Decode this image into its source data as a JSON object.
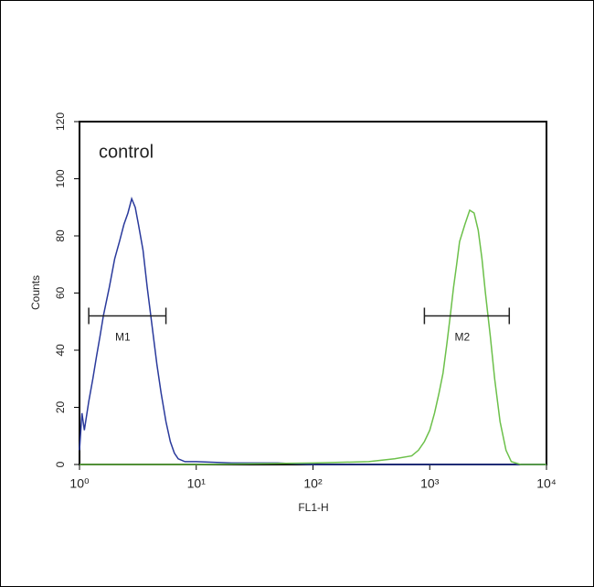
{
  "chart_data": {
    "type": "line",
    "annotation": "control",
    "x_label": "FL1-H",
    "y_label": "Counts",
    "log_x": true,
    "xlim": [
      1,
      10000
    ],
    "xticks": [
      {
        "value": 1,
        "label": "10⁰"
      },
      {
        "value": 10,
        "label": "10¹"
      },
      {
        "value": 100,
        "label": "10²"
      },
      {
        "value": 1000,
        "label": "10³"
      },
      {
        "value": 10000,
        "label": "10⁴"
      }
    ],
    "ylim": [
      0,
      120
    ],
    "yticks": [
      0,
      20,
      40,
      60,
      80,
      100,
      120
    ],
    "series": [
      {
        "color": "#2a3a9c",
        "x": [
          1.0,
          1.05,
          1.1,
          1.2,
          1.3,
          1.4,
          1.5,
          1.6,
          1.8,
          2.0,
          2.2,
          2.4,
          2.6,
          2.8,
          3.0,
          3.2,
          3.5,
          3.8,
          4.2,
          4.6,
          5.0,
          5.5,
          6.0,
          6.5,
          7.0,
          8,
          10,
          20,
          50,
          100,
          1000,
          10000
        ],
        "values": [
          5,
          18,
          12,
          22,
          30,
          38,
          45,
          52,
          62,
          72,
          78,
          84,
          88,
          93,
          90,
          84,
          75,
          62,
          48,
          35,
          25,
          15,
          8,
          4,
          2,
          1,
          1,
          0.5,
          0.5,
          0,
          0,
          0
        ]
      },
      {
        "color": "#6cc04a",
        "x": [
          1,
          10,
          100,
          300,
          500,
          700,
          800,
          900,
          1000,
          1100,
          1200,
          1300,
          1400,
          1500,
          1600,
          1700,
          1800,
          2000,
          2200,
          2400,
          2600,
          2800,
          3000,
          3300,
          3600,
          4000,
          4500,
          5000,
          6000,
          10000
        ],
        "values": [
          0,
          0,
          0.5,
          1,
          2,
          3,
          5,
          8,
          12,
          18,
          25,
          32,
          42,
          52,
          62,
          70,
          78,
          84,
          89,
          88,
          82,
          72,
          60,
          45,
          30,
          15,
          5,
          1,
          0,
          0
        ]
      }
    ],
    "markers": [
      {
        "label": "M1",
        "x": [
          1.2,
          5.5
        ],
        "y": 52
      },
      {
        "label": "M2",
        "x": [
          900,
          4800
        ],
        "y": 52
      }
    ]
  }
}
